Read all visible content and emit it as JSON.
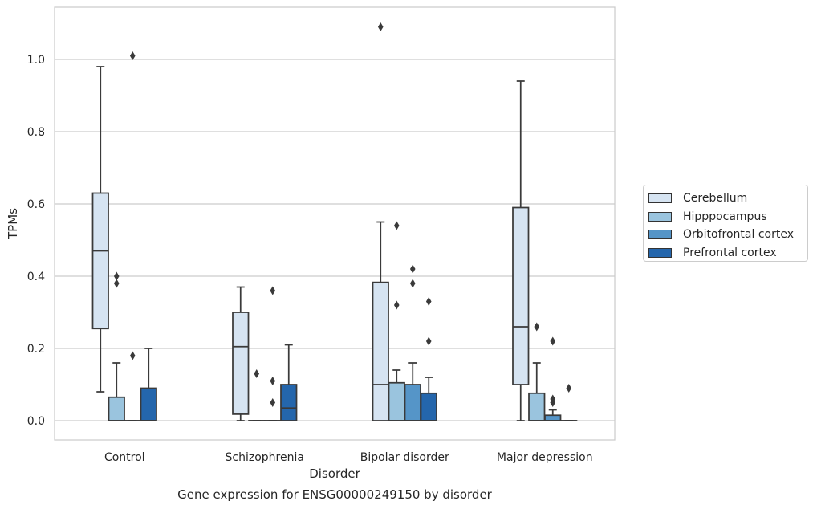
{
  "chart_data": {
    "type": "box",
    "title": "Gene expression for ENSG00000249150 by disorder",
    "xlabel": "Disorder",
    "ylabel": "TPMs",
    "ylim": [
      -0.052,
      1.145
    ],
    "yticks": [
      "0.0",
      "0.2",
      "0.4",
      "0.6",
      "0.8",
      "1.0"
    ],
    "grid": "horizontal",
    "legend_position": "right",
    "categories": [
      "Control",
      "Schizophrenia",
      "Bipolar disorder",
      "Major depression"
    ],
    "series": [
      {
        "name": "Cerebellum",
        "color": "#d6e4f2",
        "boxes": [
          {
            "min": 0.08,
            "q1": 0.255,
            "median": 0.47,
            "q3": 0.63,
            "max": 0.98,
            "outliers": []
          },
          {
            "min": 0.0,
            "q1": 0.018,
            "median": 0.205,
            "q3": 0.3,
            "max": 0.37,
            "outliers": []
          },
          {
            "min": 0.0,
            "q1": 0.0,
            "median": 0.1,
            "q3": 0.383,
            "max": 0.55,
            "outliers": [
              1.09
            ]
          },
          {
            "min": 0.0,
            "q1": 0.1,
            "median": 0.26,
            "q3": 0.59,
            "max": 0.94,
            "outliers": []
          }
        ]
      },
      {
        "name": "Hipppocampus",
        "color": "#9ac4de",
        "boxes": [
          {
            "min": 0.0,
            "q1": 0.0,
            "median": 0.0,
            "q3": 0.065,
            "max": 0.16,
            "outliers": [
              0.38,
              0.4
            ]
          },
          {
            "min": 0.0,
            "q1": 0.0,
            "median": 0.0,
            "q3": 0.0,
            "max": 0.0,
            "outliers": [
              0.13
            ]
          },
          {
            "min": 0.0,
            "q1": 0.0,
            "median": 0.0,
            "q3": 0.105,
            "max": 0.14,
            "outliers": [
              0.32,
              0.54
            ]
          },
          {
            "min": 0.0,
            "q1": 0.0,
            "median": 0.0,
            "q3": 0.076,
            "max": 0.16,
            "outliers": [
              0.26
            ]
          }
        ]
      },
      {
        "name": "Orbitofrontal cortex",
        "color": "#5595c8",
        "boxes": [
          {
            "min": 0.0,
            "q1": 0.0,
            "median": 0.0,
            "q3": 0.0,
            "max": 0.0,
            "outliers": [
              0.18,
              1.01
            ]
          },
          {
            "min": 0.0,
            "q1": 0.0,
            "median": 0.0,
            "q3": 0.0,
            "max": 0.0,
            "outliers": [
              0.05,
              0.11,
              0.36
            ]
          },
          {
            "min": 0.0,
            "q1": 0.0,
            "median": 0.0,
            "q3": 0.1,
            "max": 0.16,
            "outliers": [
              0.38,
              0.42
            ]
          },
          {
            "min": 0.0,
            "q1": 0.0,
            "median": 0.0,
            "q3": 0.015,
            "max": 0.03,
            "outliers": [
              0.05,
              0.06,
              0.22
            ]
          }
        ]
      },
      {
        "name": "Prefrontal cortex",
        "color": "#2466ac",
        "boxes": [
          {
            "min": 0.0,
            "q1": 0.0,
            "median": 0.0,
            "q3": 0.09,
            "max": 0.2,
            "outliers": []
          },
          {
            "min": 0.0,
            "q1": 0.0,
            "median": 0.035,
            "q3": 0.1,
            "max": 0.21,
            "outliers": []
          },
          {
            "min": 0.0,
            "q1": 0.0,
            "median": 0.0,
            "q3": 0.076,
            "max": 0.12,
            "outliers": [
              0.22,
              0.33
            ]
          },
          {
            "min": 0.0,
            "q1": 0.0,
            "median": 0.0,
            "q3": 0.0,
            "max": 0.0,
            "outliers": [
              0.09
            ]
          }
        ]
      }
    ]
  }
}
